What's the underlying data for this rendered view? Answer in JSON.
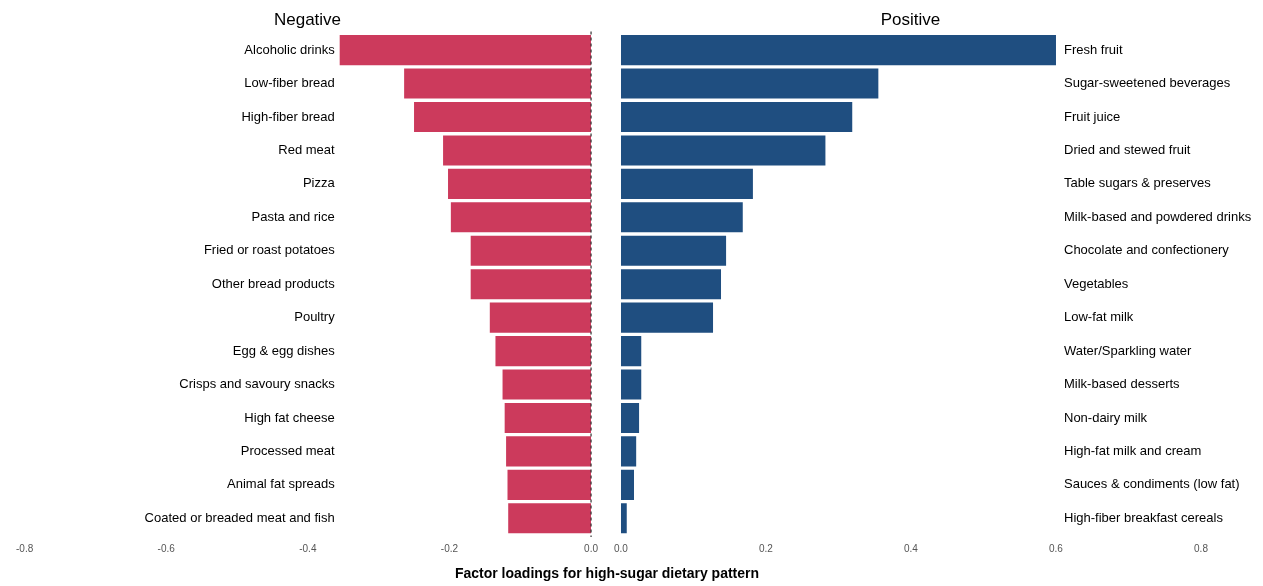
{
  "chart_data": [
    {
      "type": "bar",
      "orientation": "horizontal",
      "title": "Negative",
      "xlabel": "Factor loadings for high-sugar dietary pattern",
      "categories": [
        "Alcoholic drinks",
        "Low-fiber bread",
        "High-fiber bread",
        "Red meat",
        "Pizza",
        "Pasta and rice",
        "Fried or roast potatoes",
        "Other bread products",
        "Poultry",
        "Egg & egg dishes",
        "Crisps and savoury snacks",
        "High fat cheese",
        "Processed meat",
        "Animal fat spreads",
        "Coated or breaded meat and fish"
      ],
      "values": [
        -0.355,
        -0.264,
        -0.25,
        -0.209,
        -0.202,
        -0.198,
        -0.17,
        -0.17,
        -0.143,
        -0.135,
        -0.125,
        -0.122,
        -0.12,
        -0.118,
        -0.117
      ],
      "color": "#cc3a5c",
      "xlim": [
        -0.8,
        0
      ],
      "xticks": [
        -0.8,
        -0.6,
        -0.4,
        -0.2,
        {
          "value": 0,
          "label": "0.0"
        }
      ],
      "ref_lines": [
        {
          "axis": "x",
          "value": 0,
          "color": "#333333",
          "line_style": "dashed"
        }
      ]
    },
    {
      "type": "bar",
      "orientation": "horizontal",
      "title": "Positive",
      "categories": [
        "Fresh fruit",
        "Sugar-sweetened beverages",
        "Fruit juice",
        "Dried and stewed fruit",
        "Table sugars & preserves",
        "Milk-based and powdered drinks",
        "Chocolate and confectionery",
        "Vegetables",
        "Low-fat milk",
        "Water/Sparkling water",
        "Milk-based desserts",
        "Non-dairy milk",
        "High-fat milk and cream",
        "Sauces & condiments (low fat)",
        "High-fiber breakfast cereals"
      ],
      "values": [
        0.6,
        0.355,
        0.319,
        0.282,
        0.182,
        0.168,
        0.145,
        0.138,
        0.127,
        0.028,
        0.028,
        0.025,
        0.021,
        0.018,
        0.008
      ],
      "color": "#1f4e80",
      "xlim": [
        0,
        0.8
      ],
      "xticks": [
        {
          "value": 0,
          "label": "0.0"
        },
        0.2,
        0.4,
        0.6,
        0.8
      ]
    }
  ]
}
